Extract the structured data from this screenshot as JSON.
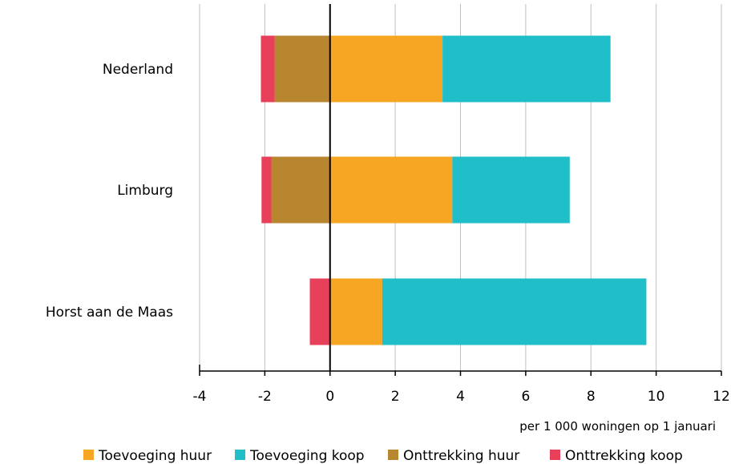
{
  "chart_data": {
    "type": "bar",
    "orientation": "horizontal",
    "stacked": true,
    "categories": [
      "Nederland",
      "Limburg",
      "Horst aan de Maas"
    ],
    "series": [
      {
        "name": "Toevoeging huur",
        "color": "#F6A623",
        "values": [
          3.45,
          3.75,
          1.6
        ]
      },
      {
        "name": "Toevoeging koop",
        "color": "#1FBEC9",
        "values": [
          5.15,
          3.6,
          8.1
        ]
      },
      {
        "name": "Onttrekking huur",
        "color": "#B8862E",
        "values": [
          -1.7,
          -1.8,
          0
        ]
      },
      {
        "name": "Onttrekking koop",
        "color": "#E8405A",
        "values": [
          -0.42,
          -0.3,
          -0.62
        ]
      }
    ],
    "xlim": [
      -4,
      12
    ],
    "xticks": [
      "-4",
      "-2",
      "0",
      "2",
      "4",
      "6",
      "8",
      "10",
      "12"
    ],
    "xlabel": "per 1 000 woningen op 1 januari",
    "ylabel": "",
    "title": "",
    "grid": true,
    "legend_position": "bottom",
    "colors": {
      "gridline": "#BFBFBF",
      "axis": "#000000"
    }
  }
}
